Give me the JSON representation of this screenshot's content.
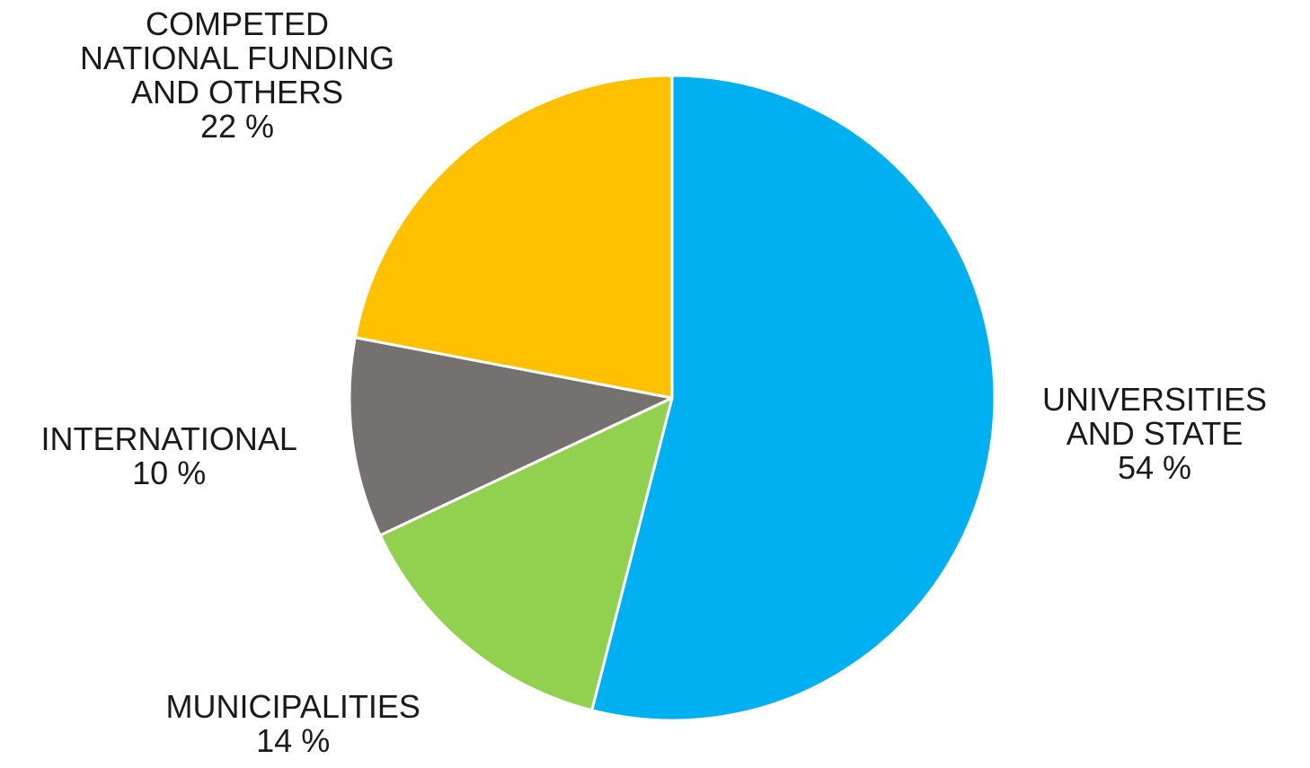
{
  "chart_data": {
    "type": "pie",
    "title": "",
    "slices": [
      {
        "name": "UNIVERSITIES AND STATE",
        "label_lines": [
          "UNIVERSITIES",
          "AND STATE"
        ],
        "value": 54,
        "value_label": "54 %",
        "color": "#00b0f0"
      },
      {
        "name": "MUNICIPALITIES",
        "label_lines": [
          "MUNICIPALITIES"
        ],
        "value": 14,
        "value_label": "14 %",
        "color": "#92d050"
      },
      {
        "name": "INTERNATIONAL",
        "label_lines": [
          "INTERNATIONAL"
        ],
        "value": 10,
        "value_label": "10 %",
        "color": "#767171"
      },
      {
        "name": "COMPETED NATIONAL FUNDING AND OTHERS",
        "label_lines": [
          "COMPETED",
          "NATIONAL FUNDING",
          "AND OTHERS"
        ],
        "value": 22,
        "value_label": "22 %",
        "color": "#ffc000"
      }
    ],
    "start_angle": "12 o'clock",
    "direction": "clockwise",
    "legend": "none"
  }
}
